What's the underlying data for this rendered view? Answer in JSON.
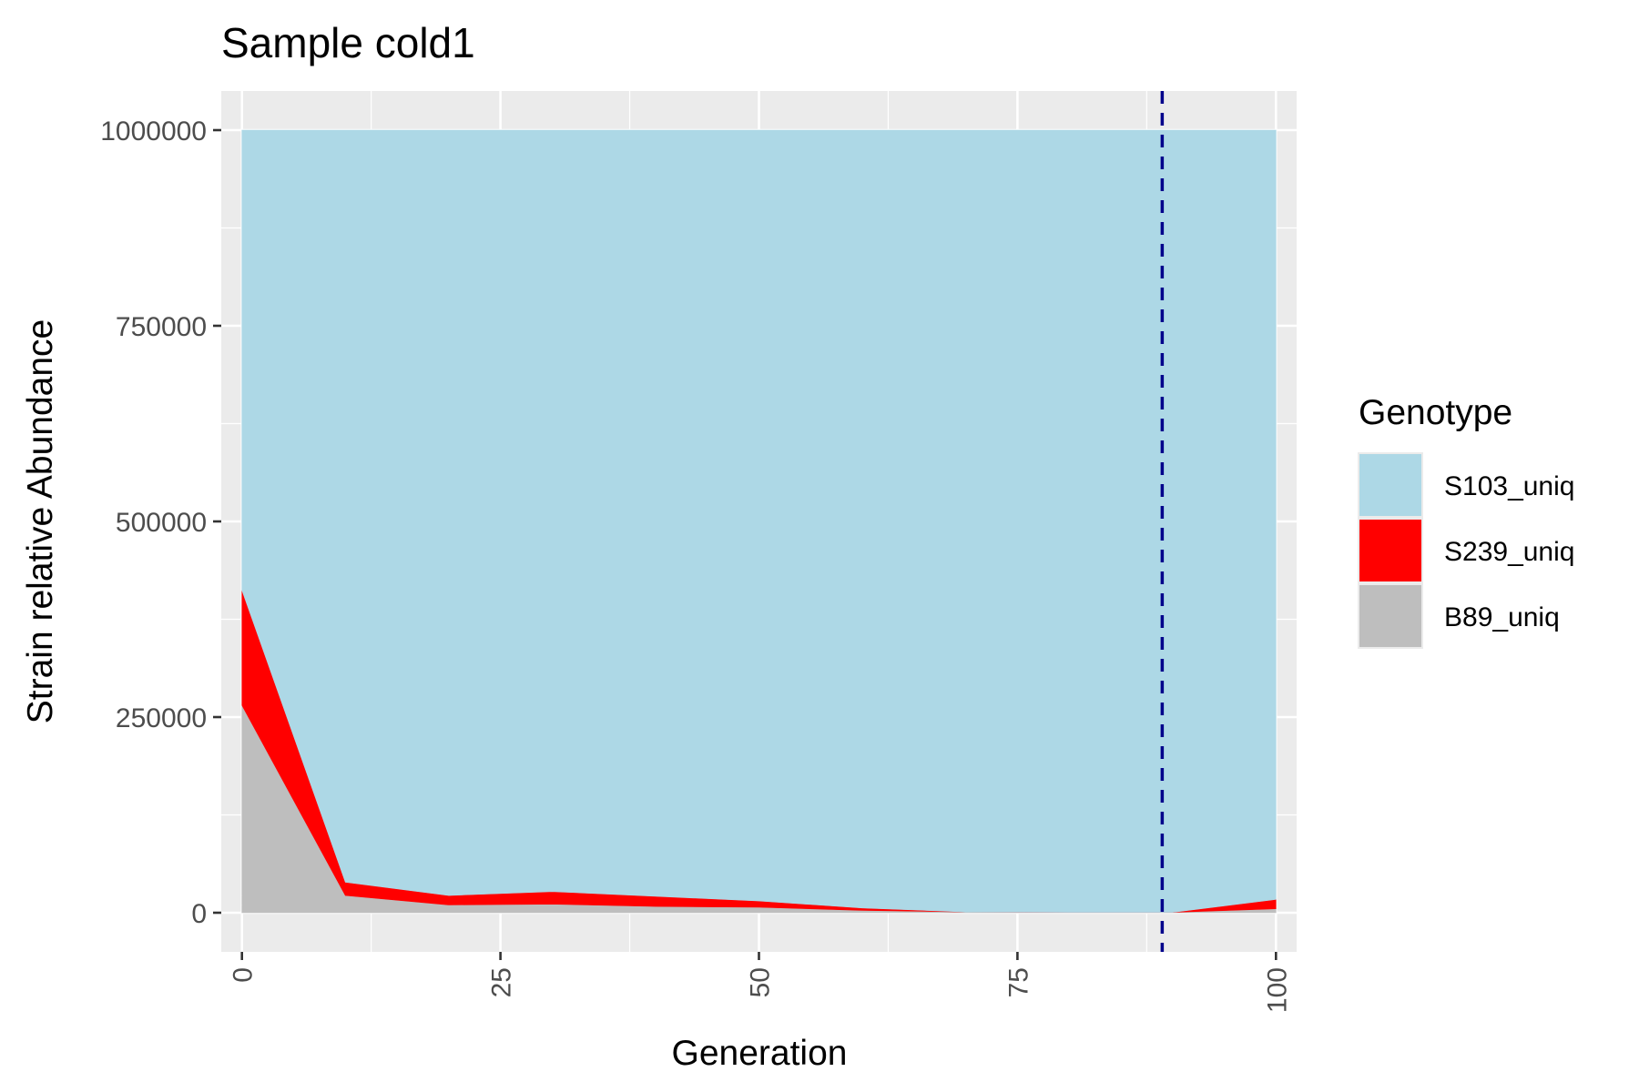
{
  "chart_data": {
    "type": "area",
    "stacked": true,
    "title": "Sample cold1",
    "xlabel": "Generation",
    "ylabel": "Strain relative Abundance",
    "xlim": [
      -2,
      102
    ],
    "ylim": [
      -50000,
      1050000
    ],
    "x_ticks": [
      0,
      25,
      50,
      75,
      100
    ],
    "x_tick_labels": [
      "0",
      "25",
      "50",
      "75",
      "100"
    ],
    "y_ticks": [
      0,
      250000,
      500000,
      750000,
      1000000
    ],
    "y_tick_labels": [
      "0",
      "250000",
      "500000",
      "750000",
      "1000000"
    ],
    "x": [
      0,
      10,
      20,
      30,
      40,
      50,
      60,
      70,
      80,
      90,
      100
    ],
    "series": [
      {
        "name": "B89_uniq",
        "color": "#bebebe",
        "values": [
          265000,
          22000,
          10000,
          11000,
          8000,
          7000,
          3000,
          1000,
          500,
          500,
          5000
        ]
      },
      {
        "name": "S239_uniq",
        "color": "#ff0000",
        "values": [
          147000,
          17000,
          12000,
          16000,
          13000,
          8000,
          3000,
          0,
          0,
          0,
          12000
        ]
      },
      {
        "name": "S103_uniq",
        "color": "#add8e6",
        "values": [
          588000,
          961000,
          978000,
          973000,
          979000,
          985000,
          994000,
          999000,
          999500,
          999500,
          983000
        ]
      }
    ],
    "vline": {
      "x": 89,
      "color": "#00008b",
      "style": "dashed"
    },
    "grid": true,
    "background": "#ebebeb",
    "legend": {
      "title": "Genotype",
      "placement": "right",
      "entries": [
        {
          "label": "S103_uniq",
          "color": "#add8e6"
        },
        {
          "label": "S239_uniq",
          "color": "#ff0000"
        },
        {
          "label": "B89_uniq",
          "color": "#bebebe"
        }
      ]
    }
  }
}
